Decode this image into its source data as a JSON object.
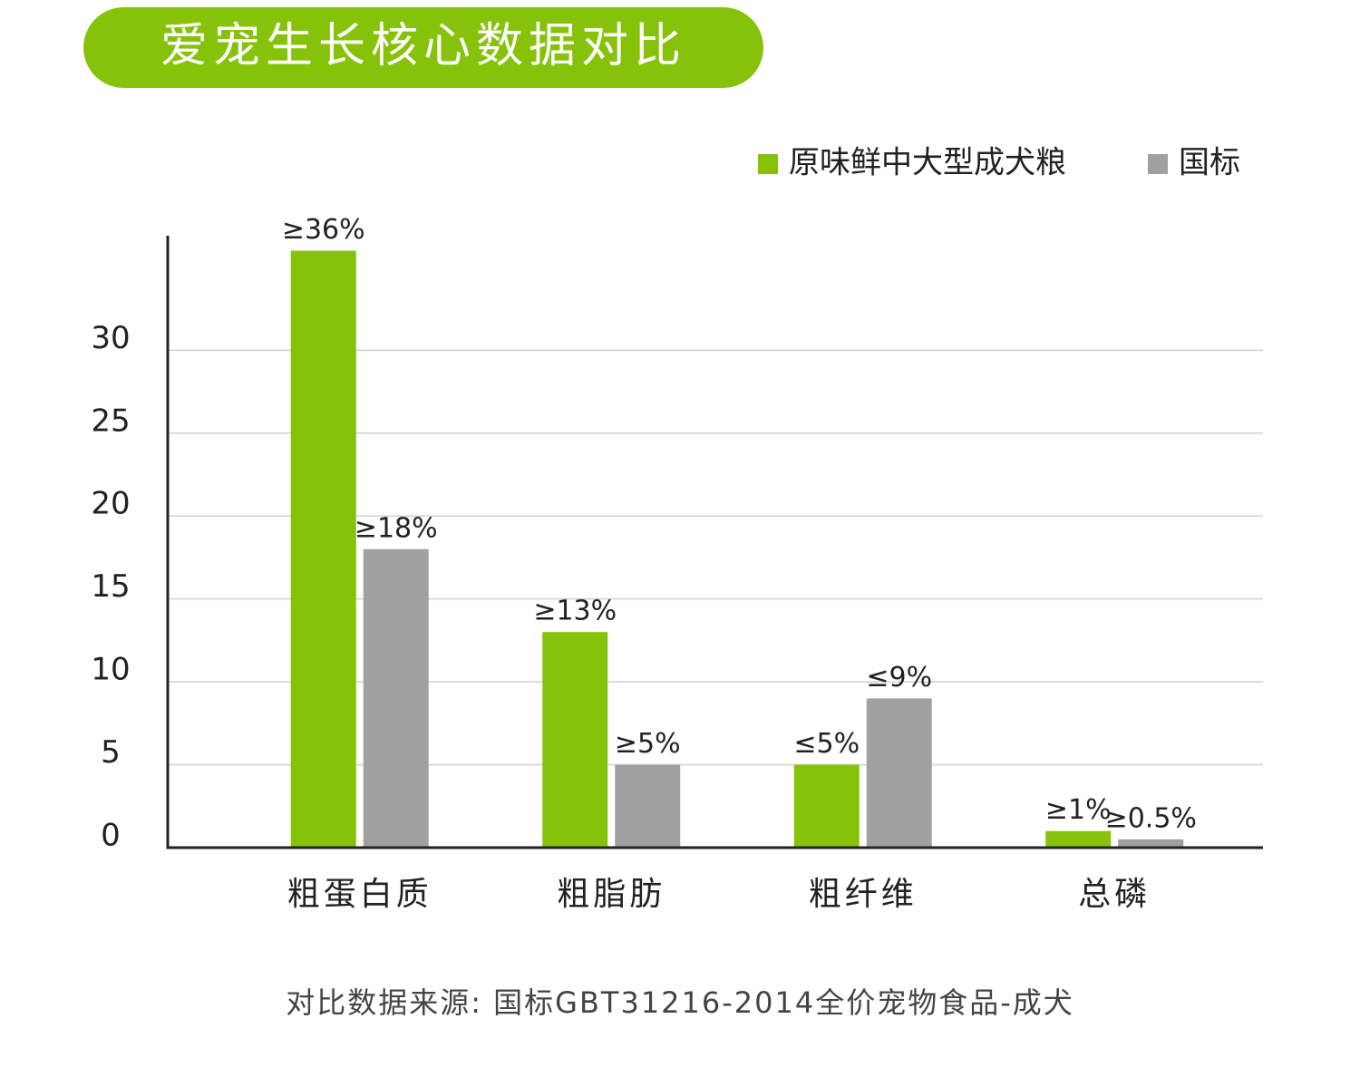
{
  "header": {
    "title": "爱宠生长核心数据对比"
  },
  "chart_data": {
    "type": "bar",
    "categories": [
      "粗蛋白质",
      "粗脂肪",
      "粗纤维",
      "总磷"
    ],
    "series": [
      {
        "name": "原味鲜中大型成犬粮",
        "color": "#86c20a",
        "values": [
          36,
          13,
          5,
          1
        ],
        "value_labels": [
          "≥36%",
          "≥13%",
          "≤5%",
          "≥1%"
        ]
      },
      {
        "name": "国标",
        "color": "#a0a0a0",
        "values": [
          18,
          5,
          9,
          0.5
        ],
        "value_labels": [
          "≥18%",
          "≥5%",
          "≤9%",
          "≥0.5%"
        ]
      }
    ],
    "ylim": [
      0,
      38
    ],
    "yticks": [
      0,
      5,
      10,
      15,
      20,
      25,
      30
    ],
    "grid": true,
    "legend": "top-right"
  },
  "footer": {
    "note": "对比数据来源: 国标GBT31216-2014全价宠物食品-成犬"
  }
}
